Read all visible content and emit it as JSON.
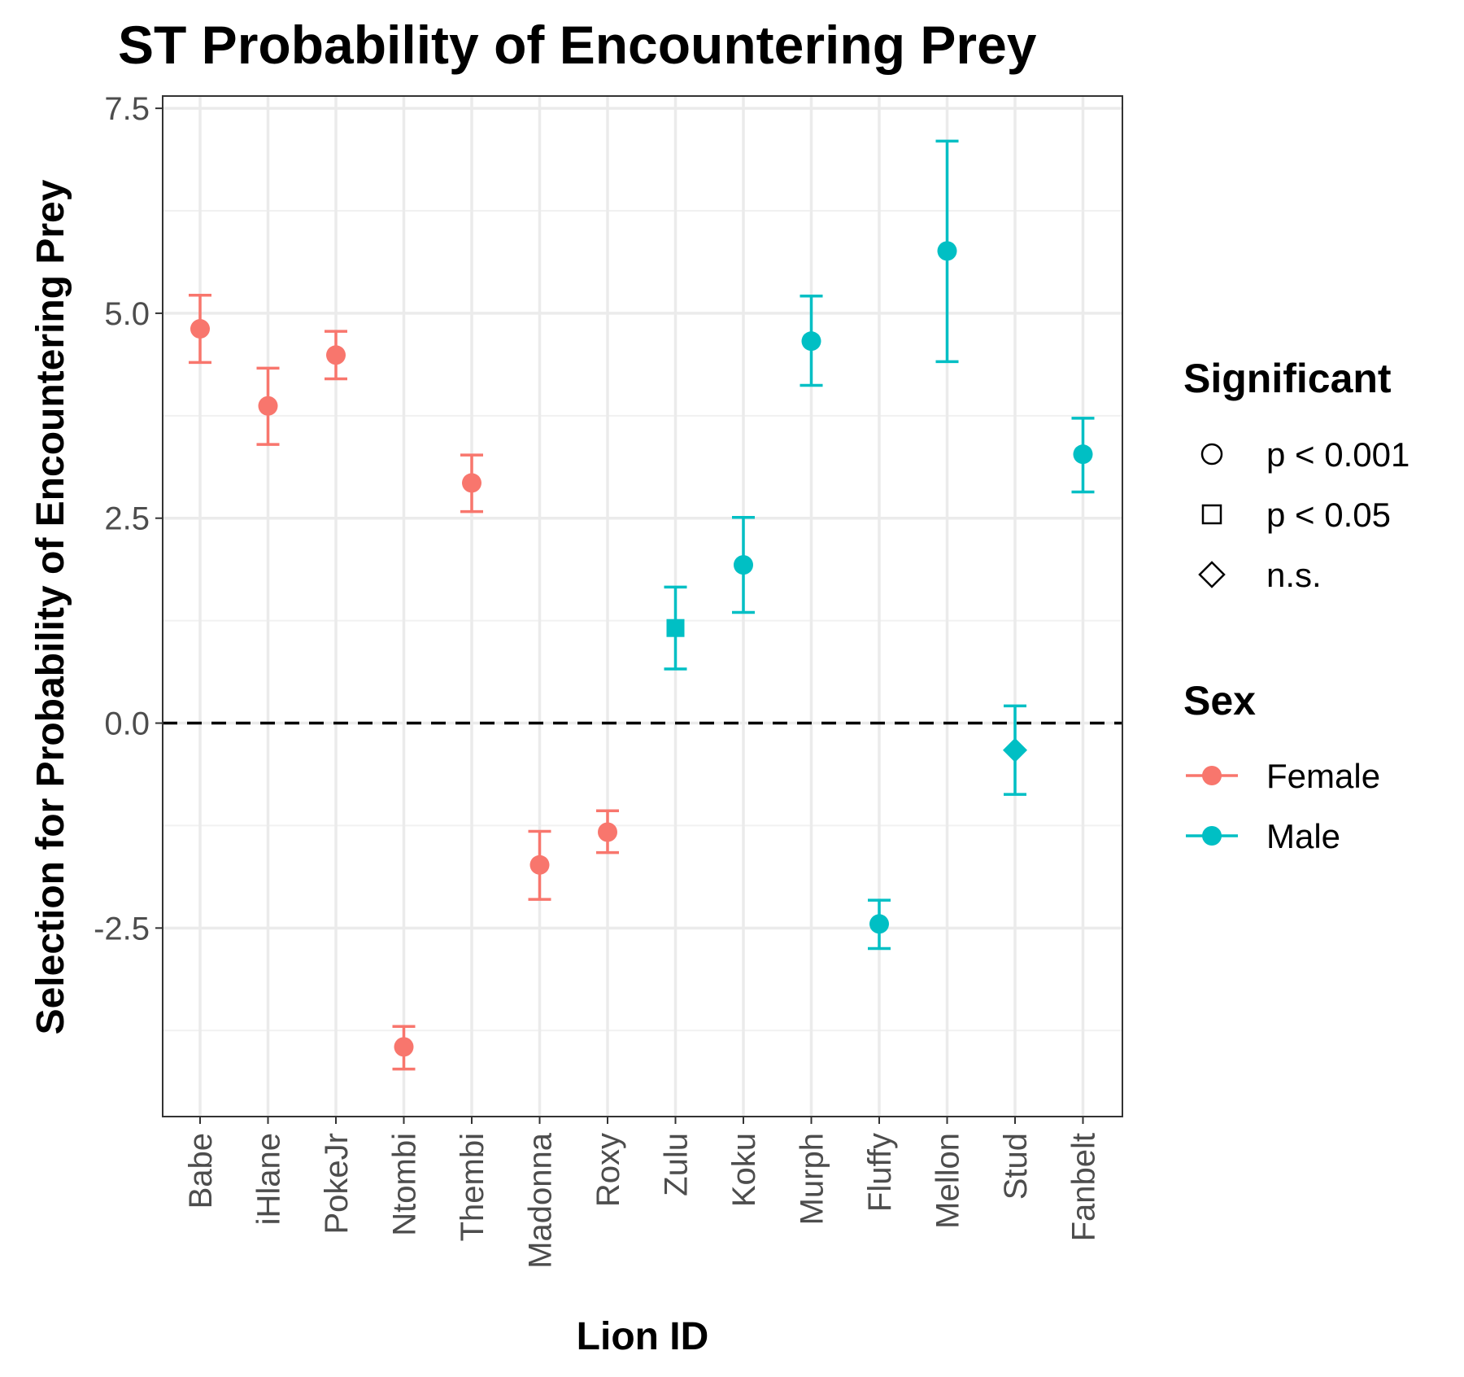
{
  "chart_data": {
    "type": "scatter",
    "title": "ST Probability of Encountering Prey",
    "xlabel": "Lion ID",
    "ylabel": "Selection for Probability of Encountering Prey",
    "ylim": [
      -4.8,
      7.65
    ],
    "yticks": [
      -2.5,
      0.0,
      2.5,
      5.0,
      7.5
    ],
    "ytick_labels": [
      "-2.5",
      "0.0",
      "2.5",
      "5.0",
      "7.5"
    ],
    "grid": true,
    "reference_line": {
      "y": 0,
      "style": "dashed"
    },
    "categories": [
      "Babe",
      "iHlane",
      "PokeJr",
      "Ntombi",
      "Thembi",
      "Madonna",
      "Roxy",
      "Zulu",
      "Koku",
      "Murph",
      "Fluffy",
      "Mellon",
      "Stud",
      "Fanbelt"
    ],
    "points": [
      {
        "id": "Babe",
        "y": 4.81,
        "lower": 4.4,
        "upper": 5.22,
        "sex": "Female",
        "significance": "p < 0.001"
      },
      {
        "id": "iHlane",
        "y": 3.87,
        "lower": 3.4,
        "upper": 4.33,
        "sex": "Female",
        "significance": "p < 0.001"
      },
      {
        "id": "PokeJr",
        "y": 4.49,
        "lower": 4.2,
        "upper": 4.78,
        "sex": "Female",
        "significance": "p < 0.001"
      },
      {
        "id": "Ntombi",
        "y": -3.95,
        "lower": -4.22,
        "upper": -3.7,
        "sex": "Female",
        "significance": "p < 0.001"
      },
      {
        "id": "Thembi",
        "y": 2.93,
        "lower": 2.58,
        "upper": 3.27,
        "sex": "Female",
        "significance": "p < 0.001"
      },
      {
        "id": "Madonna",
        "y": -1.73,
        "lower": -2.15,
        "upper": -1.32,
        "sex": "Female",
        "significance": "p < 0.001"
      },
      {
        "id": "Roxy",
        "y": -1.33,
        "lower": -1.58,
        "upper": -1.07,
        "sex": "Female",
        "significance": "p < 0.001"
      },
      {
        "id": "Zulu",
        "y": 1.16,
        "lower": 0.66,
        "upper": 1.66,
        "sex": "Male",
        "significance": "p < 0.05"
      },
      {
        "id": "Koku",
        "y": 1.93,
        "lower": 1.35,
        "upper": 2.51,
        "sex": "Male",
        "significance": "p < 0.001"
      },
      {
        "id": "Murph",
        "y": 4.66,
        "lower": 4.12,
        "upper": 5.21,
        "sex": "Male",
        "significance": "p < 0.001"
      },
      {
        "id": "Fluffy",
        "y": -2.45,
        "lower": -2.75,
        "upper": -2.16,
        "sex": "Male",
        "significance": "p < 0.001"
      },
      {
        "id": "Mellon",
        "y": 5.76,
        "lower": 4.41,
        "upper": 7.1,
        "sex": "Male",
        "significance": "p < 0.001"
      },
      {
        "id": "Stud",
        "y": -0.33,
        "lower": -0.87,
        "upper": 0.21,
        "sex": "Male",
        "significance": "n.s."
      },
      {
        "id": "Fanbelt",
        "y": 3.28,
        "lower": 2.82,
        "upper": 3.72,
        "sex": "Male",
        "significance": "p < 0.001"
      }
    ],
    "legends": [
      {
        "title": "Significant",
        "entries": [
          {
            "label": "p < 0.001",
            "shape": "circle"
          },
          {
            "label": "p < 0.05",
            "shape": "square"
          },
          {
            "label": "n.s.",
            "shape": "diamond"
          }
        ]
      },
      {
        "title": "Sex",
        "entries": [
          {
            "label": "Female",
            "color": "#F8766D"
          },
          {
            "label": "Male",
            "color": "#00BFC4"
          }
        ]
      }
    ],
    "legend_position": "right",
    "colors": {
      "Female": "#F8766D",
      "Male": "#00BFC4"
    }
  }
}
